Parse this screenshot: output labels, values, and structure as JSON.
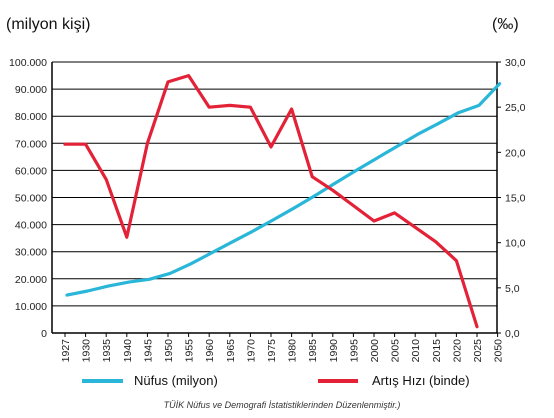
{
  "chart_data": {
    "type": "line",
    "left_axis_unit": "(milyon kişi)",
    "right_axis_unit": "(‰)",
    "left_ticks": [
      "0",
      "10.000",
      "20.000",
      "30.000",
      "40.000",
      "50.000",
      "60.000",
      "70.000",
      "80.000",
      "90.000",
      "100.000"
    ],
    "right_ticks": [
      "0,0",
      "5,0",
      "10,0",
      "15,0",
      "20,0",
      "25,0",
      "30,0"
    ],
    "x_ticks": [
      "1927",
      "1930",
      "1935",
      "1940",
      "1945",
      "1950",
      "1955",
      "1960",
      "1965",
      "1970",
      "1975",
      "1980",
      "1985",
      "1990",
      "1995",
      "2000",
      "2005",
      "2010",
      "2015",
      "2020",
      "2025",
      "2050"
    ],
    "left_ylim": [
      0,
      100000
    ],
    "right_ylim": [
      0,
      30
    ],
    "grid": true,
    "legend_position": "bottom",
    "series": [
      {
        "name": "Nüfus (milyon)",
        "axis": "left",
        "color": "#29b6d8",
        "values": [
          14000,
          15500,
          17300,
          18800,
          19800,
          22000,
          25500,
          29500,
          33500,
          37500,
          41700,
          46000,
          50500,
          55200,
          59800,
          64300,
          68800,
          73200,
          77200,
          81300,
          84000,
          92000
        ]
      },
      {
        "name": "Artış Hızı (binde)",
        "axis": "right",
        "color": "#e32237",
        "values": [
          20.9,
          20.9,
          17.0,
          10.6,
          21.0,
          27.8,
          28.5,
          25.0,
          25.2,
          25.0,
          20.6,
          24.8,
          17.3,
          15.8,
          14.1,
          12.4,
          13.3,
          11.7,
          10.1,
          8.0,
          0.7
        ]
      }
    ],
    "source_note": "TÜİK Nüfus ve Demografi İstatistiklerinden Düzenlenmiştir.)"
  },
  "colors": {
    "population": "#29b6d8",
    "growth": "#e32237",
    "grid": "#000000",
    "axis": "#000000"
  }
}
